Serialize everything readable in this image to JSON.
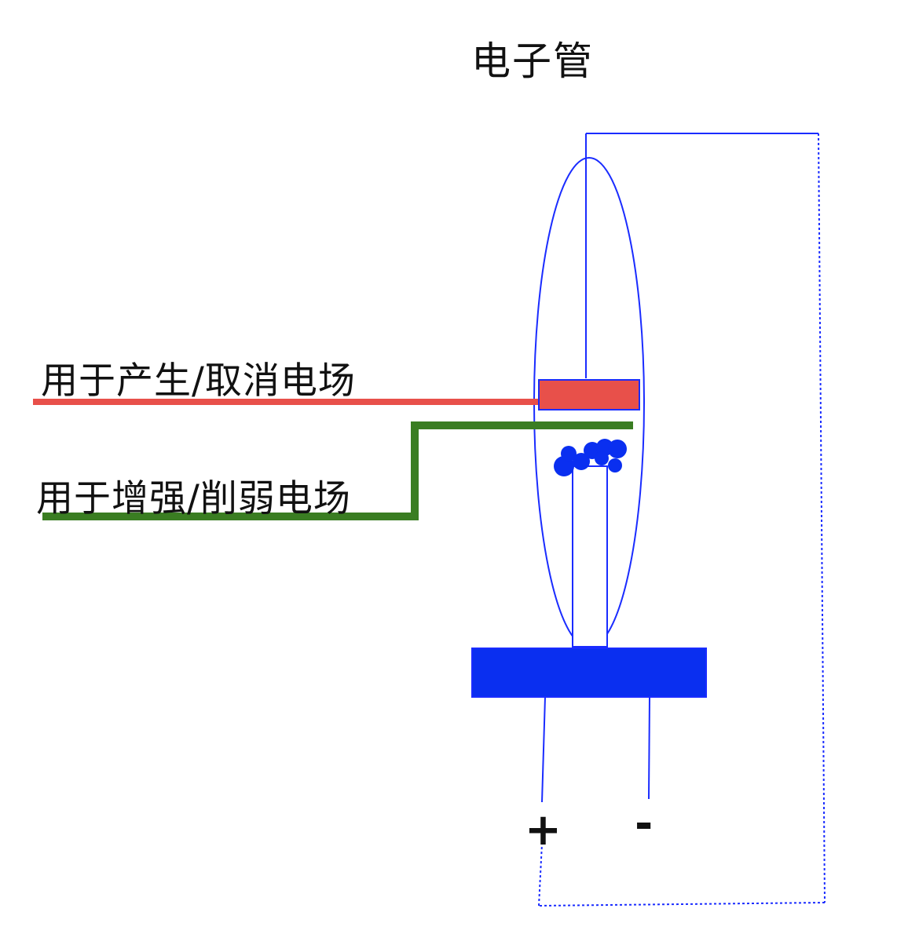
{
  "title": "电子管",
  "labels": {
    "generate_cancel_field": "用于产生/取消电场",
    "enhance_weaken_field": "用于增强/削弱电场"
  },
  "terminals": {
    "positive": "+",
    "negative": "-"
  },
  "colors": {
    "tube_outline": "#1a2cff",
    "tube_base": "#0a2ff0",
    "red_lead": "#e8504a",
    "green_lead": "#3a7d22",
    "text": "#111111"
  }
}
